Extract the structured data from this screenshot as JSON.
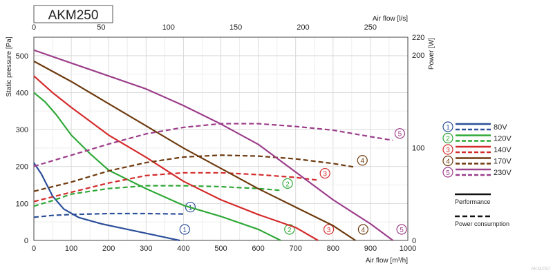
{
  "title": "AKM250",
  "watermark": "AKM250",
  "chart_data": {
    "type": "line",
    "x_bottom": {
      "label": "Air flow [m³/h]",
      "ticks": [
        0,
        100,
        200,
        300,
        400,
        500,
        600,
        700,
        800,
        900,
        1000
      ],
      "range": [
        0,
        1000
      ]
    },
    "x_top": {
      "label": "Air flow [l/s]",
      "ticks": [
        0,
        50,
        100,
        150,
        200,
        250
      ],
      "range": [
        0,
        277.8
      ]
    },
    "y_left": {
      "label": "Static pressure [Pa]",
      "ticks": [
        0,
        100,
        200,
        300,
        400,
        500
      ],
      "range": [
        0,
        550
      ]
    },
    "y_right": {
      "label": "Power [W]",
      "ticks": [
        0,
        100,
        200,
        220
      ],
      "range": [
        0,
        220
      ]
    },
    "grid": true,
    "legend": {
      "placement": "right",
      "style_entries": [
        {
          "label": "Performance",
          "dash": false
        },
        {
          "label": "Power consumption",
          "dash": true
        }
      ]
    },
    "series": [
      {
        "name": "80V",
        "number": "1",
        "color": "#2b4f9a",
        "pressure": {
          "x": [
            0,
            20,
            50,
            80,
            120,
            180,
            250,
            320,
            390
          ],
          "y": [
            210,
            180,
            120,
            85,
            62,
            45,
            30,
            15,
            0
          ]
        },
        "power": {
          "x": [
            0,
            50,
            100,
            200,
            300,
            400
          ],
          "y": [
            25,
            27,
            28,
            29,
            29,
            28.5
          ]
        },
        "pressure_label_x": 385,
        "power_label_x": 415
      },
      {
        "name": "120V",
        "number": "2",
        "color": "#2ea836",
        "pressure": {
          "x": [
            0,
            30,
            60,
            100,
            150,
            200,
            300,
            400,
            500,
            600,
            660
          ],
          "y": [
            400,
            375,
            340,
            285,
            235,
            190,
            140,
            95,
            65,
            30,
            0
          ]
        },
        "power": {
          "x": [
            0,
            50,
            100,
            200,
            300,
            400,
            500,
            600,
            660
          ],
          "y": [
            37,
            43,
            50,
            56,
            59,
            59,
            58,
            56,
            54
          ]
        },
        "pressure_label_x": 665,
        "power_label_x": 680
      },
      {
        "name": "140V",
        "number": "3",
        "color": "#d42a2a",
        "pressure": {
          "x": [
            0,
            50,
            100,
            200,
            300,
            400,
            500,
            600,
            700,
            760
          ],
          "y": [
            445,
            400,
            360,
            285,
            225,
            160,
            110,
            70,
            35,
            0
          ]
        },
        "power": {
          "x": [
            0,
            100,
            200,
            300,
            400,
            500,
            600,
            700,
            760
          ],
          "y": [
            42,
            52,
            62,
            70,
            73,
            73,
            71,
            68,
            65
          ]
        },
        "pressure_label_x": 770,
        "power_label_x": 780
      },
      {
        "name": "170V",
        "number": "4",
        "color": "#6e3a0e",
        "pressure": {
          "x": [
            0,
            100,
            200,
            300,
            400,
            500,
            600,
            700,
            800,
            860
          ],
          "y": [
            485,
            430,
            370,
            310,
            250,
            195,
            140,
            90,
            40,
            0
          ]
        },
        "power": {
          "x": [
            0,
            100,
            200,
            300,
            400,
            500,
            600,
            700,
            800,
            860
          ],
          "y": [
            53,
            63,
            75,
            84,
            90,
            92,
            91,
            88,
            83,
            79
          ]
        },
        "pressure_label_x": 862,
        "power_label_x": 875
      },
      {
        "name": "230V",
        "number": "5",
        "color": "#9c3d8a",
        "pressure": {
          "x": [
            0,
            100,
            200,
            300,
            400,
            500,
            600,
            700,
            800,
            900,
            960
          ],
          "y": [
            515,
            480,
            445,
            410,
            365,
            315,
            260,
            185,
            110,
            45,
            0
          ]
        },
        "power": {
          "x": [
            0,
            100,
            200,
            300,
            400,
            500,
            600,
            700,
            800,
            900,
            960
          ],
          "y": [
            80,
            92,
            104,
            115,
            122,
            126,
            126,
            123,
            119,
            112,
            108
          ]
        },
        "pressure_label_x": 965,
        "power_label_x": 980
      }
    ]
  }
}
